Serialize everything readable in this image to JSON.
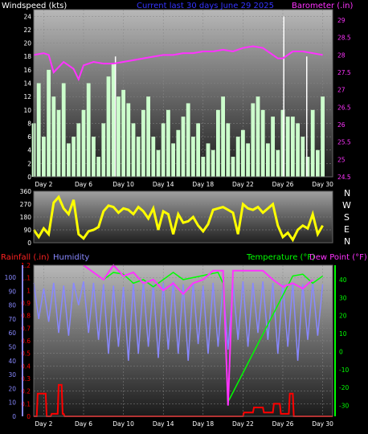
{
  "header": {
    "windspeed": "Windspeed (kts)",
    "current": "Current last 30 days June 29 2025",
    "barometer": "Barometer (.in)"
  },
  "compass": [
    "N",
    "W",
    "S",
    "E",
    "N"
  ],
  "bottom_header": {
    "rainfall": "Rainfall (.in)",
    "humidity": "Humidity",
    "temperature": "Temperature (°F)",
    "dewpoint": "Dew Point (°F)"
  },
  "colors": {
    "wind": "#ccffcc",
    "gust": "#ffffff",
    "barometer": "#ff33ff",
    "direction": "#ffff00",
    "humidity": "#8888ff",
    "rain": "#ff0000",
    "temperature": "#00ff00",
    "dewpoint": "#ff33ff",
    "grid": "#888888"
  },
  "chart_data": [
    {
      "type": "area",
      "name": "wind-barometer",
      "xlabels": [
        "Day 2",
        "Day 6",
        "Day 10",
        "Day 14",
        "Day 18",
        "Day 22",
        "Day 26",
        "Day 30"
      ],
      "xlim": [
        1,
        31
      ],
      "yticks_left": [
        "0",
        "2",
        "4",
        "6",
        "8",
        "10",
        "12",
        "14",
        "16",
        "18",
        "20",
        "22",
        "24"
      ],
      "yticks_right": [
        "24.5",
        "25",
        "25.5",
        "26",
        "26.5",
        "27",
        "27.5",
        "28",
        "28.5",
        "29"
      ],
      "ylim_left": [
        0,
        25
      ],
      "ylim_right": [
        24.5,
        29.3
      ],
      "series": [
        {
          "key": "wind",
          "x": [
            1,
            1.5,
            2,
            2.5,
            3,
            3.5,
            4,
            4.5,
            5,
            5.5,
            6,
            6.5,
            7,
            7.5,
            8,
            8.5,
            9,
            9.5,
            10,
            10.5,
            11,
            11.5,
            12,
            12.5,
            13,
            13.5,
            14,
            14.5,
            15,
            15.5,
            16,
            16.5,
            17,
            17.5,
            18,
            18.5,
            19,
            19.5,
            20,
            20.5,
            21,
            21.5,
            22,
            22.5,
            23,
            23.5,
            24,
            24.5,
            25,
            25.5,
            26,
            26.5,
            27,
            27.5,
            28,
            28.5,
            29,
            29.5,
            30
          ],
          "values": [
            8,
            14,
            6,
            16,
            12,
            10,
            14,
            5,
            6,
            8,
            10,
            14,
            6,
            3,
            8,
            15,
            17,
            12,
            13,
            11,
            8,
            6,
            10,
            12,
            6,
            4,
            8,
            10,
            5,
            7,
            9,
            11,
            6,
            8,
            3,
            5,
            4,
            10,
            12,
            8,
            3,
            6,
            7,
            5,
            11,
            12,
            10,
            5,
            9,
            4,
            10,
            9,
            9,
            8,
            6,
            3,
            10,
            4,
            12
          ]
        },
        {
          "key": "gust",
          "x": [
            9.2,
            26.1,
            28.4
          ],
          "values": [
            18,
            24,
            18
          ]
        },
        {
          "key": "barometer",
          "x": [
            1,
            2,
            2.5,
            3,
            4,
            5,
            5.5,
            6,
            7,
            8,
            9,
            10,
            11,
            12,
            13,
            14,
            15,
            16,
            17,
            18,
            19,
            20,
            21,
            22,
            23,
            24,
            25,
            25.5,
            26,
            27,
            28,
            29,
            30
          ],
          "values": [
            28.0,
            28.05,
            28.0,
            27.5,
            27.8,
            27.6,
            27.3,
            27.7,
            27.8,
            27.75,
            27.75,
            27.8,
            27.85,
            27.9,
            27.95,
            28.0,
            28.0,
            28.05,
            28.05,
            28.1,
            28.1,
            28.15,
            28.1,
            28.2,
            28.25,
            28.2,
            28.0,
            27.9,
            27.9,
            28.1,
            28.1,
            28.05,
            28.0
          ]
        }
      ]
    },
    {
      "type": "line",
      "name": "wind-direction",
      "xlim": [
        1,
        31
      ],
      "yticks": [
        "0",
        "90",
        "180",
        "270",
        "360"
      ],
      "ylim": [
        0,
        360
      ],
      "series": [
        {
          "key": "direction",
          "x": [
            1,
            1.5,
            2,
            2.5,
            3,
            3.5,
            4,
            4.5,
            5,
            5.5,
            6,
            6.5,
            7,
            7.5,
            8,
            8.5,
            9,
            9.5,
            10,
            10.5,
            11,
            11.5,
            12,
            12.5,
            13,
            13.5,
            14,
            14.5,
            15,
            15.5,
            16,
            16.5,
            17,
            17.5,
            18,
            18.5,
            19,
            19.5,
            20,
            20.5,
            21,
            21.5,
            22,
            22.5,
            23,
            23.5,
            24,
            24.5,
            25,
            25.5,
            26,
            26.5,
            27,
            27.5,
            28,
            28.5,
            29,
            29.5,
            30
          ],
          "values": [
            90,
            40,
            100,
            60,
            280,
            320,
            240,
            200,
            300,
            60,
            30,
            80,
            90,
            110,
            220,
            260,
            250,
            210,
            240,
            230,
            200,
            250,
            220,
            170,
            240,
            90,
            220,
            200,
            60,
            200,
            140,
            150,
            180,
            120,
            80,
            130,
            230,
            240,
            250,
            230,
            210,
            60,
            270,
            240,
            230,
            250,
            210,
            240,
            270,
            120,
            40,
            70,
            20,
            90,
            120,
            100,
            200,
            60,
            120
          ]
        }
      ]
    },
    {
      "type": "line",
      "name": "rain-humidity-temperature",
      "xlabels": [
        "Day 2",
        "Day 6",
        "Day 10",
        "Day 14",
        "Day 18",
        "Day 22",
        "Day 26",
        "Day 30"
      ],
      "xlim": [
        1,
        31
      ],
      "yticks_humidity": [
        "0",
        "10",
        "20",
        "30",
        "40",
        "50",
        "60",
        "70",
        "80",
        "90",
        "100"
      ],
      "yticks_rain": [
        "0",
        "0.1",
        "0.2",
        "0.3",
        "0.4",
        "0.5",
        "0.6",
        "0.7",
        "0.8",
        "0.9",
        "1",
        "1.1",
        "1.2"
      ],
      "yticks_temp": [
        "-30",
        "-20",
        "-10",
        "0",
        "10",
        "20",
        "30",
        "40"
      ],
      "ylim_rain": [
        0,
        1.2
      ],
      "ylim_temp": [
        -36,
        48
      ],
      "series": [
        {
          "key": "humidity",
          "x": [
            1,
            1.5,
            2,
            2.5,
            3,
            3.5,
            4,
            4.5,
            5,
            5.5,
            6,
            6.5,
            7,
            7.5,
            8,
            8.5,
            9,
            9.5,
            10,
            10.5,
            11,
            11.5,
            12,
            12.5,
            13,
            13.5,
            14,
            14.5,
            15,
            15.5,
            16,
            16.5,
            17,
            17.5,
            18,
            18.5,
            19,
            19.5,
            20,
            20.5,
            21,
            21.5,
            22,
            22.5,
            23,
            23.5,
            24,
            24.5,
            25,
            25.5,
            26,
            26.5,
            27,
            27.5,
            28,
            28.5,
            29,
            29.5,
            30
          ],
          "values": [
            96,
            70,
            92,
            68,
            96,
            60,
            94,
            58,
            96,
            80,
            97,
            60,
            96,
            55,
            95,
            45,
            94,
            50,
            93,
            40,
            95,
            45,
            96,
            50,
            95,
            42,
            96,
            48,
            97,
            45,
            95,
            40,
            96,
            52,
            94,
            45,
            96,
            50,
            95,
            48,
            96,
            55,
            97,
            50,
            96,
            60,
            97,
            55,
            96,
            45,
            95,
            50,
            96,
            40,
            95,
            55,
            96,
            58,
            95
          ]
        },
        {
          "key": "rain",
          "x": [
            1,
            1.3,
            1.4,
            2.2,
            2.3,
            2.7,
            2.8,
            3.4,
            3.5,
            3.8,
            3.9,
            4.0,
            4.1,
            5.0,
            5.1,
            22.0,
            22.1,
            23.0,
            23.1,
            24.0,
            24.1,
            25.0,
            25.1,
            25.7,
            25.8,
            26.6,
            26.7,
            27.0,
            27.1,
            31
          ],
          "values": [
            0,
            0,
            0.18,
            0.18,
            0,
            0,
            0.02,
            0.02,
            0.25,
            0.25,
            0.02,
            0.02,
            0,
            0,
            0,
            0,
            0.03,
            0.03,
            0.07,
            0.07,
            0.03,
            0.03,
            0.1,
            0.1,
            0.02,
            0.02,
            0.18,
            0.18,
            0,
            0
          ]
        },
        {
          "key": "temperature",
          "x": [
            8,
            9,
            10,
            11,
            12,
            13,
            14,
            15,
            16,
            19.5,
            20,
            20.5,
            27,
            28,
            29,
            30
          ],
          "values": [
            40,
            44,
            43,
            38,
            40,
            36,
            40,
            44,
            40,
            44,
            38,
            -28,
            42,
            43,
            38,
            42
          ]
        },
        {
          "key": "dewpoint",
          "x": [
            6,
            7,
            8,
            9,
            10,
            11,
            12,
            13,
            14,
            15,
            16,
            17,
            18,
            19,
            20,
            20.5,
            21,
            24,
            25,
            26,
            27,
            28,
            29
          ],
          "values": [
            48,
            44,
            40,
            48,
            42,
            44,
            38,
            40,
            34,
            38,
            32,
            38,
            40,
            45,
            45,
            -30,
            45,
            45,
            40,
            36,
            38,
            35,
            40
          ]
        }
      ]
    }
  ]
}
